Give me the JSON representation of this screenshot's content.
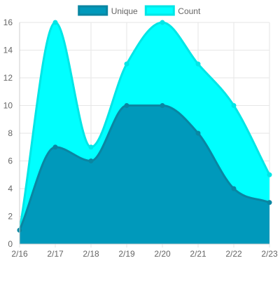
{
  "chart_data": {
    "type": "area",
    "title": "",
    "xlabel": "",
    "ylabel": "",
    "categories": [
      "2/16",
      "2/17",
      "2/18",
      "2/19",
      "2/20",
      "2/21",
      "2/22",
      "2/23"
    ],
    "ylim": [
      0,
      16
    ],
    "yticks": [
      0,
      2,
      4,
      6,
      8,
      10,
      12,
      14,
      16
    ],
    "grid": true,
    "smooth": true,
    "legend_position": "top-center",
    "series": [
      {
        "name": "Unique",
        "values": [
          1,
          7,
          6,
          10,
          10,
          8,
          4,
          3
        ],
        "fill": "#0099bb",
        "stroke": "#0a86a2"
      },
      {
        "name": "Count",
        "values": [
          1,
          16,
          7,
          13,
          16,
          13,
          10,
          5
        ],
        "fill": "#00ffff",
        "stroke": "#00e6e6"
      }
    ]
  }
}
